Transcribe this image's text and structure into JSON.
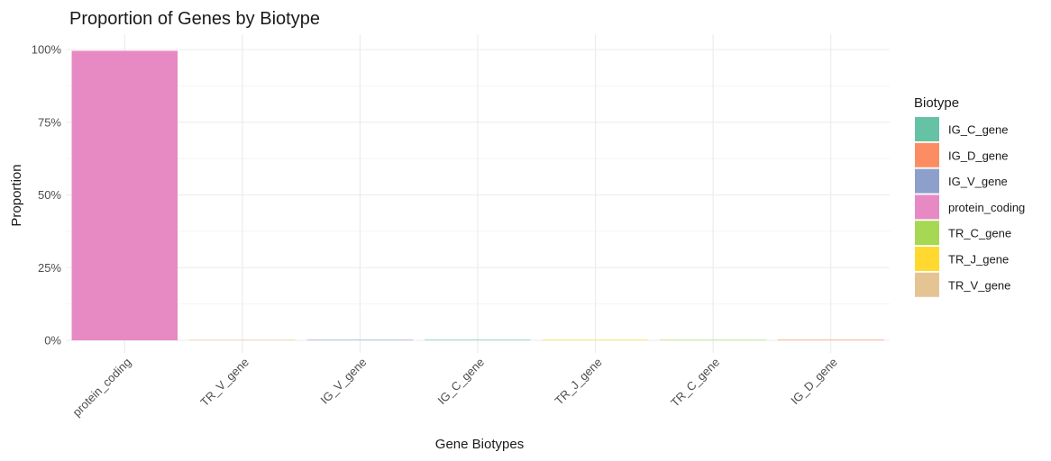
{
  "chart_data": {
    "type": "bar",
    "title": "Proportion of Genes by Biotype",
    "xlabel": "Gene Biotypes",
    "ylabel": "Proportion",
    "categories": [
      "protein_coding",
      "TR_V_gene",
      "IG_V_gene",
      "IG_C_gene",
      "TR_J_gene",
      "TR_C_gene",
      "IG_D_gene"
    ],
    "values": [
      0.9955,
      0.0015,
      0.0013,
      0.001,
      0.0007,
      0.0001,
      0.0001
    ],
    "ylim": [
      0,
      1
    ],
    "yticks": [
      {
        "value": 0,
        "label": "0%"
      },
      {
        "value": 0.25,
        "label": "25%"
      },
      {
        "value": 0.5,
        "label": "50%"
      },
      {
        "value": 0.75,
        "label": "75%"
      },
      {
        "value": 1,
        "label": "100%"
      }
    ],
    "grid": true,
    "legend": {
      "title": "Biotype",
      "position": "right",
      "entries": [
        {
          "label": "IG_C_gene",
          "color": "#66C2A5"
        },
        {
          "label": "IG_D_gene",
          "color": "#FC8D62"
        },
        {
          "label": "IG_V_gene",
          "color": "#8DA0CB"
        },
        {
          "label": "protein_coding",
          "color": "#E78AC3"
        },
        {
          "label": "TR_C_gene",
          "color": "#A6D854"
        },
        {
          "label": "TR_J_gene",
          "color": "#FFD92F"
        },
        {
          "label": "TR_V_gene",
          "color": "#E5C494"
        }
      ]
    }
  }
}
